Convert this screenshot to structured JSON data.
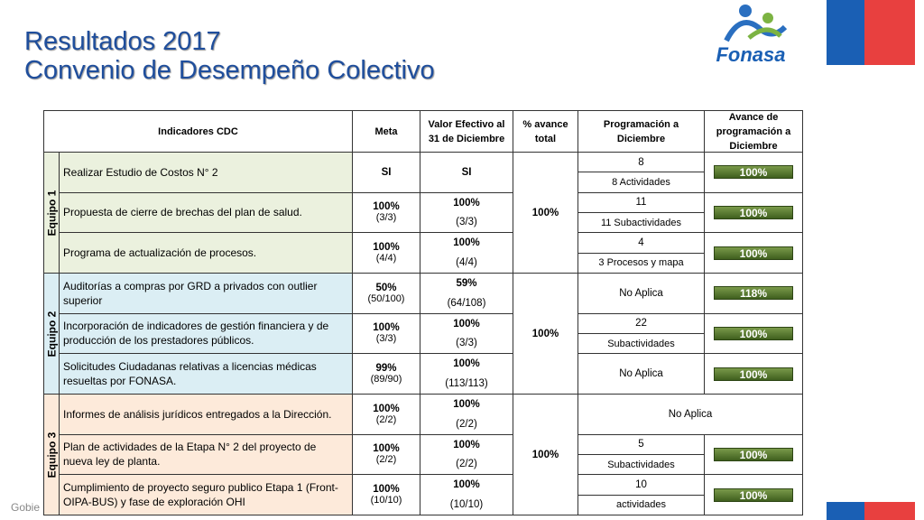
{
  "title": [
    "Resultados 2017",
    "Convenio de Desempeño Colectivo"
  ],
  "logo": "Fonasa",
  "footer": "Gobie",
  "table": {
    "headers": [
      "Indicadores CDC",
      "Meta",
      "Valor Efectivo al 31 de Diciembre",
      "% avance total",
      "Programación a Diciembre",
      "Avance de programación a Diciembre"
    ],
    "groups": [
      {
        "name": "Equipo 1",
        "avance": "100%",
        "rows": [
          {
            "indicator": "Realizar Estudio de Costos N° 2",
            "meta": "SI",
            "valor": "SI",
            "prog": "8",
            "prog_detail": "8 Actividades",
            "bar": "100%"
          },
          {
            "indicator": "Propuesta de cierre de brechas del plan de salud.",
            "meta": "100%",
            "meta_detail": "(3/3)",
            "valor": "100%",
            "valor_detail": "(3/3)",
            "prog": "11",
            "prog_detail": "11 Subactividades",
            "bar": "100%"
          },
          {
            "indicator": "Programa de actualización de procesos.",
            "meta": "100%",
            "meta_detail": "(4/4)",
            "valor": "100%",
            "valor_detail": "(4/4)",
            "prog": "4",
            "prog_detail": "3 Procesos y mapa",
            "bar": "100%"
          }
        ]
      },
      {
        "name": "Equipo 2",
        "avance": "100%",
        "rows": [
          {
            "indicator": "Auditorías a compras por GRD a privados con outlier superior",
            "meta": "50%",
            "meta_detail": "(50/100)",
            "valor": "59%",
            "valor_detail": "(64/108)",
            "prog": "No Aplica",
            "bar": "118%"
          },
          {
            "indicator": "Incorporación de indicadores de gestión financiera y de producción de los prestadores públicos.",
            "meta": "100%",
            "meta_detail": "(3/3)",
            "valor": "100%",
            "valor_detail": "(3/3)",
            "prog": "22",
            "prog_detail": "Subactividades",
            "bar": "100%"
          },
          {
            "indicator": "Solicitudes Ciudadanas relativas a licencias médicas resueltas por FONASA.",
            "meta": "99%",
            "meta_detail": "(89/90)",
            "valor": "100%",
            "valor_detail": "(113/113)",
            "prog": "No Aplica",
            "bar": "100%"
          }
        ]
      },
      {
        "name": "Equipo 3",
        "avance": "100%",
        "rows": [
          {
            "indicator": "Informes de análisis jurídicos entregados a la Dirección.",
            "meta": "100%",
            "meta_detail": "(2/2)",
            "valor": "100%",
            "valor_detail": "(2/2)",
            "prog": "No Aplica"
          },
          {
            "indicator": "Plan de actividades de la Etapa N° 2 del proyecto de nueva ley de planta.",
            "meta": "100%",
            "meta_detail": "(2/2)",
            "valor": "100%",
            "valor_detail": "(2/2)",
            "prog": "5",
            "prog_detail": "Subactividades",
            "bar": "100%"
          },
          {
            "indicator": "Cumplimiento de proyecto seguro publico Etapa 1 (Front-OIPA-BUS) y fase de exploración OHI",
            "meta": "100%",
            "meta_detail": "(10/10)",
            "valor": "100%",
            "valor_detail": "(10/10)",
            "prog": "10",
            "prog_detail": "actividades",
            "bar": "100%"
          }
        ]
      }
    ]
  }
}
